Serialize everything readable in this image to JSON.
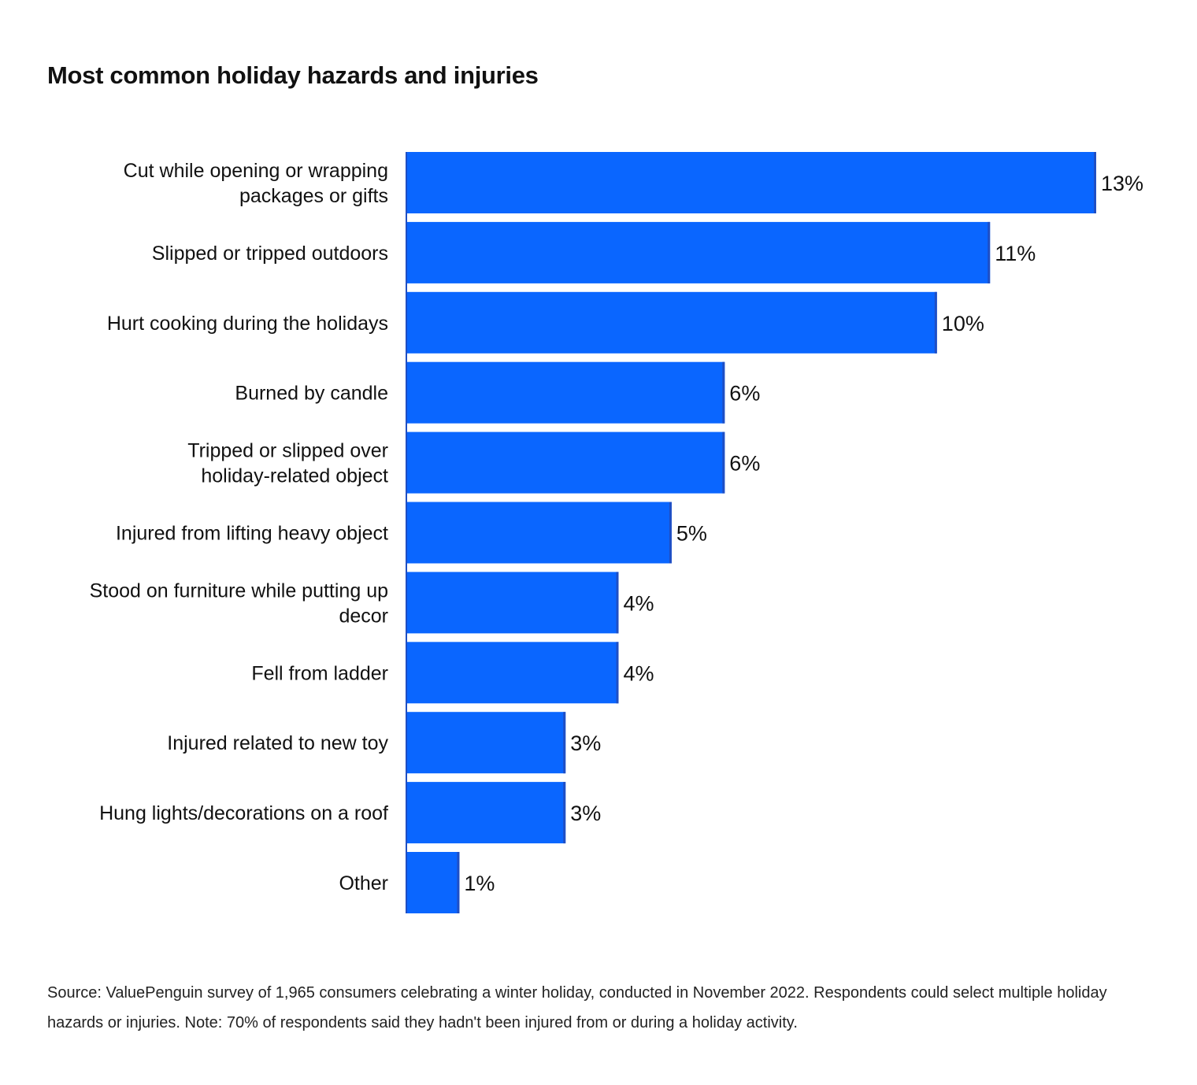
{
  "chart_data": {
    "type": "bar",
    "orientation": "horizontal",
    "title": "Most common holiday hazards and injuries",
    "categories": [
      "Cut while opening or wrapping packages or gifts",
      "Slipped or tripped outdoors",
      "Hurt cooking during the holidays",
      "Burned by candle",
      "Tripped or slipped over holiday-related object",
      "Injured from lifting heavy object",
      "Stood on furniture while putting up decor",
      "Fell from ladder",
      "Injured related to new toy",
      "Hung lights/decorations on a roof",
      "Other"
    ],
    "category_lines": [
      [
        "Cut while opening or wrapping",
        "packages or gifts"
      ],
      [
        "Slipped or tripped outdoors"
      ],
      [
        "Hurt cooking during the holidays"
      ],
      [
        "Burned by candle"
      ],
      [
        "Tripped or slipped over",
        "holiday-related object"
      ],
      [
        "Injured from lifting heavy object"
      ],
      [
        "Stood on furniture while putting up",
        "decor"
      ],
      [
        "Fell from ladder"
      ],
      [
        "Injured related to new toy"
      ],
      [
        "Hung lights/decorations on a roof"
      ],
      [
        "Other"
      ]
    ],
    "values": [
      13,
      11,
      10,
      6,
      6,
      5,
      4,
      4,
      3,
      3,
      1
    ],
    "value_labels": [
      "13%",
      "11%",
      "10%",
      "6%",
      "6%",
      "5%",
      "4%",
      "4%",
      "3%",
      "3%",
      "1%"
    ],
    "xlim": [
      0,
      13
    ],
    "bar_color": "#0a66ff",
    "grid": false,
    "legend": "none"
  },
  "source_note": "Source: ValuePenguin survey of 1,965 consumers celebrating a winter holiday, conducted in November 2022. Respondents could select multiple holiday hazards or injuries. Note: 70% of respondents said they hadn't been injured from or during a holiday activity."
}
